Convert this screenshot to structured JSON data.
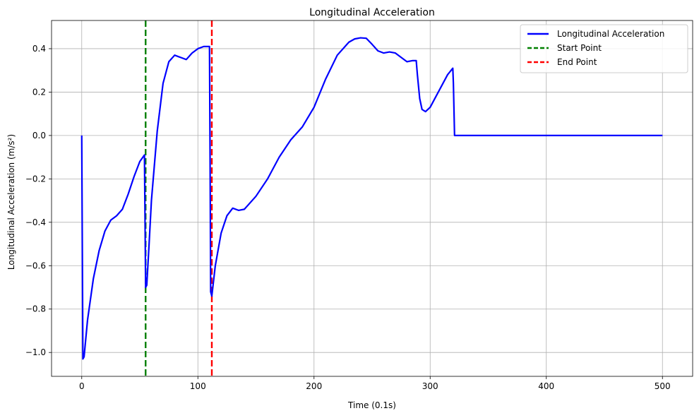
{
  "chart_data": {
    "type": "line",
    "title": "Longitudinal Acceleration",
    "xlabel": "Time (0.1s)",
    "ylabel": "Longitudinal Acceleration (m/s²)",
    "xlim": [
      -26,
      526
    ],
    "ylim": [
      -1.11,
      0.53
    ],
    "xticks": [
      0,
      100,
      200,
      300,
      400,
      500
    ],
    "xtick_labels": [
      "0",
      "100",
      "200",
      "300",
      "400",
      "500"
    ],
    "yticks": [
      -1.0,
      -0.8,
      -0.6,
      -0.4,
      -0.2,
      0.0,
      0.2,
      0.4
    ],
    "ytick_labels": [
      "−1.0",
      "−0.8",
      "−0.6",
      "−0.4",
      "−0.2",
      "0.0",
      "0.2",
      "0.4"
    ],
    "grid": true,
    "legend_position": "top-right",
    "series": [
      {
        "name": "Longitudinal Acceleration",
        "color": "#0000ff",
        "style": "solid",
        "x": [
          0,
          1,
          2,
          5,
          10,
          15,
          20,
          25,
          30,
          35,
          40,
          45,
          50,
          54,
          55,
          56,
          58,
          60,
          65,
          70,
          75,
          80,
          85,
          90,
          95,
          100,
          105,
          110,
          110.5,
          111,
          112,
          115,
          120,
          125,
          130,
          135,
          140,
          150,
          160,
          170,
          180,
          190,
          200,
          210,
          220,
          230,
          235,
          240,
          245,
          250,
          255,
          260,
          265,
          270,
          275,
          280,
          285,
          288,
          289,
          291,
          293,
          296,
          300,
          305,
          310,
          315,
          319.5,
          320,
          321,
          330,
          400,
          500
        ],
        "y": [
          0.0,
          -1.03,
          -1.02,
          -0.85,
          -0.66,
          -0.53,
          -0.44,
          -0.39,
          -0.37,
          -0.34,
          -0.27,
          -0.19,
          -0.12,
          -0.09,
          -0.7,
          -0.69,
          -0.5,
          -0.3,
          0.02,
          0.24,
          0.34,
          0.37,
          0.36,
          0.35,
          0.38,
          0.4,
          0.41,
          0.41,
          -0.1,
          -0.72,
          -0.74,
          -0.6,
          -0.45,
          -0.37,
          -0.335,
          -0.345,
          -0.34,
          -0.28,
          -0.2,
          -0.1,
          -0.02,
          0.04,
          0.13,
          0.26,
          0.37,
          0.43,
          0.445,
          0.45,
          0.448,
          0.42,
          0.39,
          0.38,
          0.385,
          0.38,
          0.36,
          0.34,
          0.345,
          0.345,
          0.28,
          0.17,
          0.12,
          0.11,
          0.13,
          0.18,
          0.23,
          0.28,
          0.31,
          0.24,
          0.0,
          0.0,
          0.0,
          0.0
        ]
      }
    ],
    "vlines": [
      {
        "name": "Start Point",
        "x": 55,
        "color": "#008000",
        "style": "dashed"
      },
      {
        "name": "End Point",
        "x": 112,
        "color": "#ff0000",
        "style": "dashed"
      }
    ]
  }
}
